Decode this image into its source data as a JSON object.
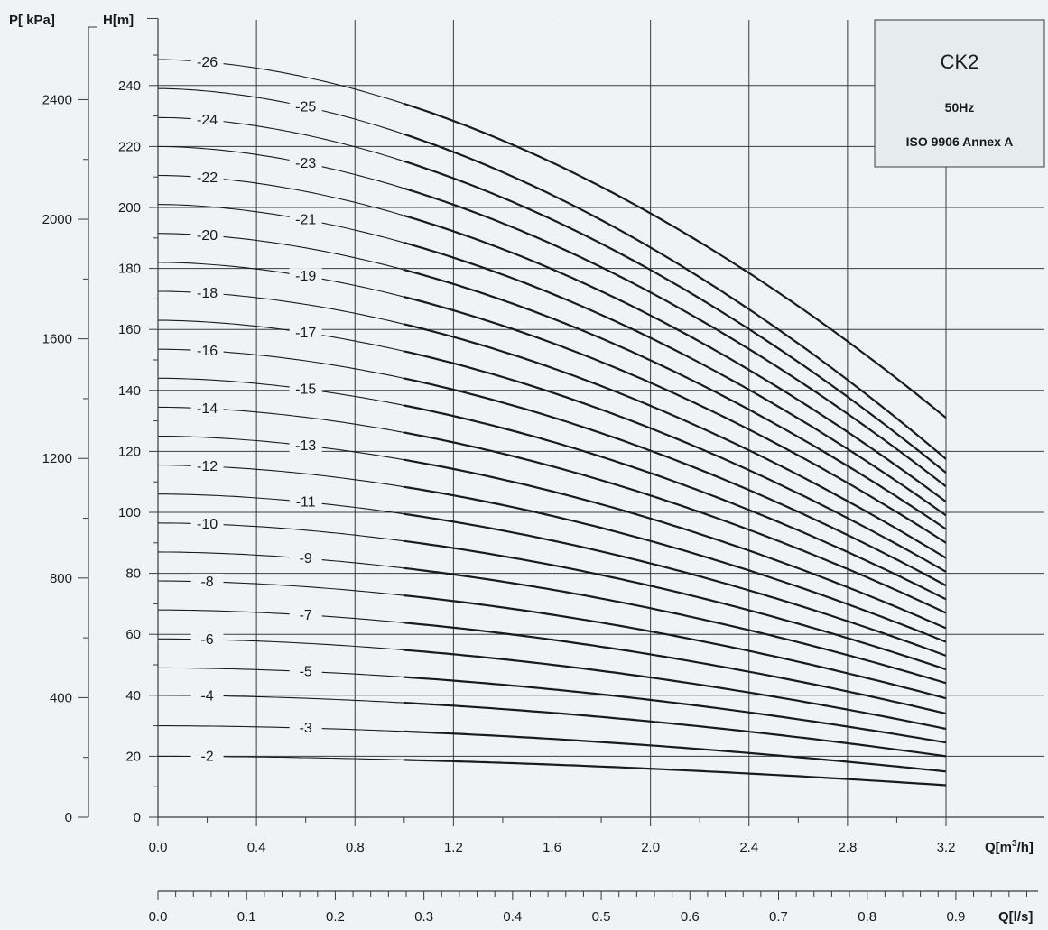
{
  "chart_data": {
    "type": "line",
    "title": "CK2",
    "subtitle_1": "50Hz",
    "subtitle_2": "ISO 9906 Annex A",
    "xlabel": "Q[m³/h]",
    "xlabel_base": "Q[m",
    "xlabel_sup": "3",
    "xlabel_tail": "/h]",
    "x2label": "Q[l/s]",
    "ylabel": "H[m]",
    "y2label": "P[ kPa]",
    "xlim": [
      0,
      3.2
    ],
    "ylim": [
      0,
      260
    ],
    "x_ticks": [
      "0.0",
      "0.4",
      "0.8",
      "1.2",
      "1.6",
      "2.0",
      "2.4",
      "2.8",
      "3.2"
    ],
    "x2_ticks": [
      "0.0",
      "0.1",
      "0.2",
      "0.3",
      "0.4",
      "0.5",
      "0.6",
      "0.7",
      "0.8",
      "0.9"
    ],
    "y_ticks": [
      "0",
      "20",
      "40",
      "60",
      "80",
      "100",
      "120",
      "140",
      "160",
      "180",
      "200",
      "220",
      "240"
    ],
    "y2_ticks": [
      "0",
      "400",
      "800",
      "1200",
      "1600",
      "2000",
      "2400"
    ],
    "grid": true,
    "series": [
      {
        "name": "-2",
        "shutoff_m": 20.0,
        "end_m": 10.5
      },
      {
        "name": "-3",
        "shutoff_m": 30.0,
        "end_m": 15.0
      },
      {
        "name": "-4",
        "shutoff_m": 40.0,
        "end_m": 20.0
      },
      {
        "name": "-5",
        "shutoff_m": 49.0,
        "end_m": 24.5
      },
      {
        "name": "-6",
        "shutoff_m": 58.5,
        "end_m": 29.0
      },
      {
        "name": "-7",
        "shutoff_m": 68.0,
        "end_m": 34.0
      },
      {
        "name": "-8",
        "shutoff_m": 77.5,
        "end_m": 39.0
      },
      {
        "name": "-9",
        "shutoff_m": 87.0,
        "end_m": 44.0
      },
      {
        "name": "-10",
        "shutoff_m": 96.5,
        "end_m": 48.5
      },
      {
        "name": "-11",
        "shutoff_m": 106.0,
        "end_m": 53.0
      },
      {
        "name": "-12",
        "shutoff_m": 115.5,
        "end_m": 57.5
      },
      {
        "name": "-13",
        "shutoff_m": 125.0,
        "end_m": 62.0
      },
      {
        "name": "-14",
        "shutoff_m": 134.5,
        "end_m": 67.0
      },
      {
        "name": "-15",
        "shutoff_m": 144.0,
        "end_m": 71.5
      },
      {
        "name": "-16",
        "shutoff_m": 153.5,
        "end_m": 76.0
      },
      {
        "name": "-17",
        "shutoff_m": 163.0,
        "end_m": 80.5
      },
      {
        "name": "-18",
        "shutoff_m": 172.5,
        "end_m": 85.0
      },
      {
        "name": "-19",
        "shutoff_m": 182.0,
        "end_m": 90.0
      },
      {
        "name": "-20",
        "shutoff_m": 191.5,
        "end_m": 94.5
      },
      {
        "name": "-21",
        "shutoff_m": 201.0,
        "end_m": 99.0
      },
      {
        "name": "-22",
        "shutoff_m": 210.5,
        "end_m": 103.5
      },
      {
        "name": "-23",
        "shutoff_m": 220.0,
        "end_m": 108.5
      },
      {
        "name": "-24",
        "shutoff_m": 229.5,
        "end_m": 113.0
      },
      {
        "name": "-25",
        "shutoff_m": 239.0,
        "end_m": 117.5
      },
      {
        "name": "-26",
        "shutoff_m": 248.5,
        "end_m": 131.0
      }
    ],
    "colors": {
      "background": "#f0f3f4",
      "line": "#1a1a1a",
      "grid": "#3a3a3a",
      "legend_box": "#e6ecee"
    }
  }
}
